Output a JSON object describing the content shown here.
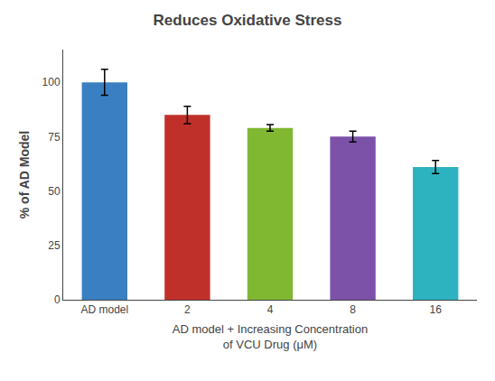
{
  "chart_data": {
    "type": "bar",
    "title": "Reduces Oxidative Stress",
    "xlabel": "AD model + Increasing Concentration\nof VCU Drug (μM)",
    "ylabel": "% of AD Model",
    "categories": [
      "AD model",
      "2",
      "4",
      "8",
      "16"
    ],
    "values": [
      100,
      85,
      79,
      75,
      61
    ],
    "errors": [
      6,
      4,
      1.5,
      2.5,
      3
    ],
    "colors": [
      "#3a7fc1",
      "#c0302a",
      "#80b832",
      "#7b52a8",
      "#2db3c0"
    ],
    "ylim": [
      0,
      115
    ],
    "yticks": [
      0,
      25,
      50,
      75,
      100
    ],
    "grid": false
  }
}
